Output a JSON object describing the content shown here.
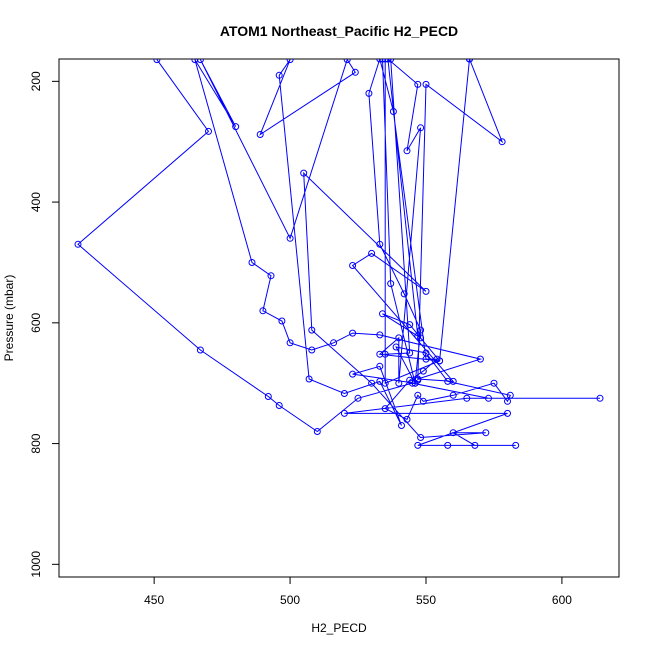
{
  "chart_data": {
    "type": "line",
    "title": "ATOM1 Northeast_Pacific H2_PECD",
    "xlabel": "H2_PECD",
    "ylabel": "Pressure (mbar)",
    "xlim": [
      415,
      621
    ],
    "ylim": [
      1021,
      163
    ],
    "y_reversed": true,
    "x_ticks": [
      450,
      500,
      550,
      600
    ],
    "y_ticks": [
      200,
      400,
      600,
      800,
      1000
    ],
    "grid": false,
    "legend": "none",
    "marker": "open-circle",
    "series": [
      {
        "color": "#0000ff",
        "points": [
          [
            451,
            164
          ],
          [
            470,
            283
          ],
          [
            422,
            470
          ],
          [
            467,
            645
          ],
          [
            492,
            722
          ],
          [
            496,
            737
          ],
          [
            510,
            780
          ],
          [
            525,
            725
          ],
          [
            545,
            700
          ],
          [
            573,
            725
          ],
          [
            614,
            725
          ],
          [
            565,
            725
          ],
          [
            520,
            750
          ],
          [
            580,
            750
          ],
          [
            547,
            803
          ],
          [
            583,
            803
          ],
          [
            558,
            803
          ],
          [
            568,
            803
          ],
          [
            560,
            782
          ],
          [
            572,
            782
          ],
          [
            548,
            790
          ],
          [
            530,
            700
          ],
          [
            508,
            612
          ],
          [
            505,
            352
          ],
          [
            550,
            548
          ],
          [
            530,
            485
          ],
          [
            523,
            505
          ],
          [
            560,
            697
          ],
          [
            547,
            693
          ],
          [
            570,
            660
          ],
          [
            533,
            620
          ],
          [
            523,
            617
          ],
          [
            516,
            633
          ],
          [
            508,
            645
          ],
          [
            500,
            633
          ],
          [
            497,
            597
          ],
          [
            490,
            580
          ],
          [
            493,
            522
          ],
          [
            486,
            500
          ],
          [
            465,
            164
          ],
          [
            480,
            275
          ],
          [
            467,
            164
          ],
          [
            500,
            460
          ],
          [
            521,
            164
          ],
          [
            524,
            185
          ],
          [
            489,
            288
          ],
          [
            500,
            164
          ],
          [
            496,
            190
          ],
          [
            507,
            693
          ],
          [
            520,
            717
          ],
          [
            533,
            697
          ],
          [
            541,
            770
          ],
          [
            533,
            672
          ],
          [
            523,
            685
          ],
          [
            546,
            700
          ],
          [
            548,
            612
          ],
          [
            542,
            552
          ],
          [
            533,
            470
          ],
          [
            529,
            220
          ],
          [
            533,
            163
          ],
          [
            538,
            250
          ],
          [
            550,
            660
          ],
          [
            554,
            660
          ],
          [
            549,
            680
          ],
          [
            544,
            695
          ],
          [
            535,
            742
          ],
          [
            543,
            760
          ],
          [
            547,
            720
          ],
          [
            549,
            730
          ],
          [
            560,
            720
          ],
          [
            575,
            700
          ],
          [
            580,
            730
          ],
          [
            581,
            720
          ],
          [
            558,
            697
          ],
          [
            550,
            650
          ],
          [
            539,
            640
          ],
          [
            546,
            700
          ],
          [
            537,
            535
          ],
          [
            534,
            163
          ],
          [
            537,
            163
          ],
          [
            544,
            650
          ],
          [
            535,
            652
          ],
          [
            535,
            163
          ],
          [
            535,
            700
          ],
          [
            555,
            663
          ],
          [
            548,
            625
          ],
          [
            544,
            603
          ],
          [
            534,
            585
          ],
          [
            547,
            622
          ],
          [
            536,
            163
          ],
          [
            547,
            205
          ],
          [
            543,
            315
          ],
          [
            548,
            277
          ],
          [
            540,
            700
          ],
          [
            540,
            625
          ],
          [
            533,
            652
          ],
          [
            555,
            663
          ],
          [
            566,
            163
          ],
          [
            566,
            163
          ],
          [
            578,
            300
          ],
          [
            550,
            205
          ],
          [
            547,
            695
          ]
        ]
      }
    ]
  }
}
